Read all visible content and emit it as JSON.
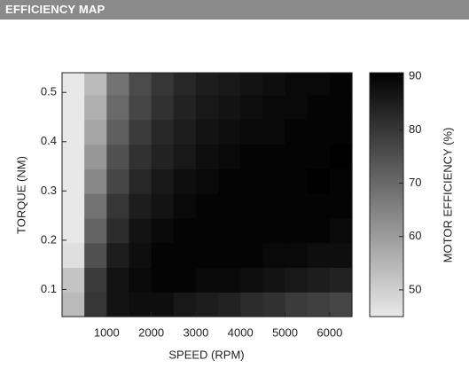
{
  "header": {
    "title": "EFFICIENCY MAP"
  },
  "chart_data": {
    "type": "heatmap",
    "x_label": "SPEED (RPM)",
    "y_label": "TORQUE (NM)",
    "x": [
      250,
      750,
      1250,
      1750,
      2250,
      2750,
      3250,
      3750,
      4250,
      4750,
      5250,
      5750,
      6250
    ],
    "y": [
      0.07,
      0.12,
      0.17,
      0.22,
      0.27,
      0.32,
      0.37,
      0.42,
      0.47,
      0.52
    ],
    "z": [
      [
        54,
        80,
        87,
        88,
        88,
        86,
        85,
        84,
        82,
        81,
        79,
        78,
        77
      ],
      [
        52,
        79,
        87,
        89,
        90,
        90,
        89,
        89,
        88,
        87,
        86,
        85,
        84
      ],
      [
        47,
        75,
        85,
        88,
        90,
        90,
        90,
        90,
        90,
        89,
        89,
        88,
        88
      ],
      [
        42,
        71,
        82,
        87,
        89,
        90,
        90,
        90,
        90,
        90,
        90,
        90,
        89
      ],
      [
        38,
        68,
        80,
        85,
        87,
        89,
        90,
        90,
        90,
        90,
        90,
        90,
        90
      ],
      [
        34,
        64,
        77,
        83,
        86,
        88,
        89,
        90,
        90,
        90,
        90,
        91,
        90
      ],
      [
        32,
        61,
        75,
        81,
        84,
        86,
        88,
        89,
        90,
        90,
        90,
        90,
        91
      ],
      [
        30,
        58,
        72,
        79,
        83,
        85,
        87,
        88,
        89,
        89,
        90,
        90,
        90
      ],
      [
        28,
        56,
        70,
        77,
        81,
        84,
        86,
        87,
        88,
        89,
        89,
        90,
        90
      ],
      [
        26,
        54,
        68,
        76,
        80,
        83,
        85,
        86,
        87,
        88,
        89,
        89,
        90
      ]
    ],
    "xlim": [
      0,
      6500
    ],
    "ylim": [
      0.045,
      0.54
    ],
    "xticks": [
      1000,
      2000,
      3000,
      4000,
      5000,
      6000
    ],
    "yticks": [
      0.1,
      0.2,
      0.3,
      0.4,
      0.5
    ],
    "colormap": "gray_r",
    "colorbar": {
      "label": "MOTOR EFFICIENCY (%)",
      "lim": [
        45,
        90.7
      ],
      "ticks": [
        50,
        60,
        70,
        80,
        90
      ]
    }
  }
}
